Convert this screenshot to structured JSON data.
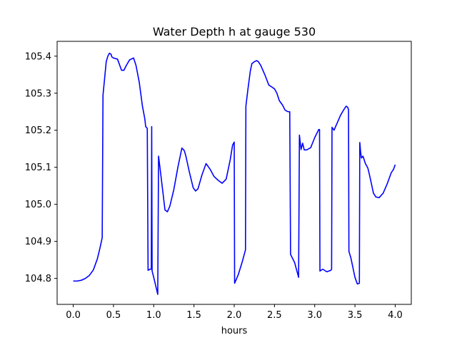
{
  "chart_data": {
    "type": "line",
    "title": "Water Depth h at gauge 530",
    "xlabel": "hours",
    "ylabel": "",
    "xlim": [
      -0.2,
      4.2
    ],
    "ylim": [
      104.73,
      105.44
    ],
    "xticks": [
      0.0,
      0.5,
      1.0,
      1.5,
      2.0,
      2.5,
      3.0,
      3.5,
      4.0
    ],
    "xtick_labels": [
      "0.0",
      "0.5",
      "1.0",
      "1.5",
      "2.0",
      "2.5",
      "3.0",
      "3.5",
      "4.0"
    ],
    "yticks": [
      104.8,
      104.9,
      105.0,
      105.1,
      105.2,
      105.3,
      105.4
    ],
    "ytick_labels": [
      "104.8",
      "104.9",
      "105.0",
      "105.1",
      "105.2",
      "105.3",
      "105.4"
    ],
    "grid": false,
    "series": [
      {
        "color": "#0000ff",
        "x": [
          0.0,
          0.05,
          0.1,
          0.15,
          0.2,
          0.25,
          0.3,
          0.33,
          0.36,
          0.37,
          0.39,
          0.41,
          0.43,
          0.45,
          0.47,
          0.48,
          0.5,
          0.55,
          0.6,
          0.63,
          0.66,
          0.7,
          0.75,
          0.78,
          0.82,
          0.86,
          0.89,
          0.9,
          0.92,
          0.93,
          0.955,
          0.97,
          0.975,
          0.98,
          1.0,
          1.05,
          1.06,
          1.08,
          1.11,
          1.14,
          1.17,
          1.2,
          1.25,
          1.3,
          1.35,
          1.38,
          1.4,
          1.44,
          1.49,
          1.52,
          1.55,
          1.6,
          1.65,
          1.7,
          1.75,
          1.8,
          1.85,
          1.9,
          1.95,
          1.98,
          2.0,
          2.005,
          2.05,
          2.1,
          2.14,
          2.145,
          2.17,
          2.2,
          2.22,
          2.25,
          2.28,
          2.3,
          2.33,
          2.38,
          2.43,
          2.5,
          2.53,
          2.56,
          2.6,
          2.63,
          2.65,
          2.67,
          2.68,
          2.69,
          2.7,
          2.75,
          2.8,
          2.81,
          2.83,
          2.85,
          2.87,
          2.9,
          2.95,
          3.0,
          3.05,
          3.06,
          3.065,
          3.1,
          3.15,
          3.2,
          3.21,
          3.215,
          3.24,
          3.28,
          3.32,
          3.36,
          3.39,
          3.41,
          3.42,
          3.425,
          3.45,
          3.5,
          3.53,
          3.555,
          3.56,
          3.57,
          3.58,
          3.6,
          3.63,
          3.66,
          3.68,
          3.7,
          3.73,
          3.76,
          3.8,
          3.85,
          3.9,
          3.95,
          3.98,
          4.0
        ],
        "y": [
          104.793,
          104.793,
          104.795,
          104.8,
          104.808,
          104.823,
          104.853,
          104.88,
          104.91,
          105.295,
          105.34,
          105.385,
          105.4,
          105.408,
          105.405,
          105.398,
          105.395,
          105.392,
          105.362,
          105.362,
          105.375,
          105.39,
          105.395,
          105.375,
          105.33,
          105.265,
          105.23,
          105.21,
          105.205,
          104.822,
          104.825,
          104.825,
          105.21,
          104.82,
          104.803,
          104.757,
          105.13,
          105.095,
          105.04,
          104.985,
          104.98,
          104.995,
          105.04,
          105.1,
          105.152,
          105.145,
          105.13,
          105.09,
          105.045,
          105.036,
          105.042,
          105.08,
          105.11,
          105.095,
          105.075,
          105.065,
          105.057,
          105.068,
          105.12,
          105.16,
          105.168,
          104.787,
          104.81,
          104.845,
          104.877,
          105.265,
          105.31,
          105.36,
          105.38,
          105.385,
          105.388,
          105.385,
          105.375,
          105.35,
          105.322,
          105.312,
          105.3,
          105.28,
          105.268,
          105.255,
          105.252,
          105.25,
          105.25,
          105.25,
          104.865,
          104.843,
          104.803,
          105.187,
          105.148,
          105.165,
          105.147,
          105.147,
          105.153,
          105.18,
          105.202,
          105.202,
          104.82,
          104.825,
          104.818,
          104.822,
          104.825,
          105.208,
          105.2,
          105.22,
          105.24,
          105.255,
          105.265,
          105.262,
          105.255,
          104.873,
          104.855,
          104.803,
          104.785,
          104.787,
          105.167,
          105.142,
          105.125,
          105.13,
          105.11,
          105.098,
          105.08,
          105.06,
          105.03,
          105.02,
          105.018,
          105.03,
          105.055,
          105.085,
          105.095,
          105.107
        ]
      }
    ]
  }
}
